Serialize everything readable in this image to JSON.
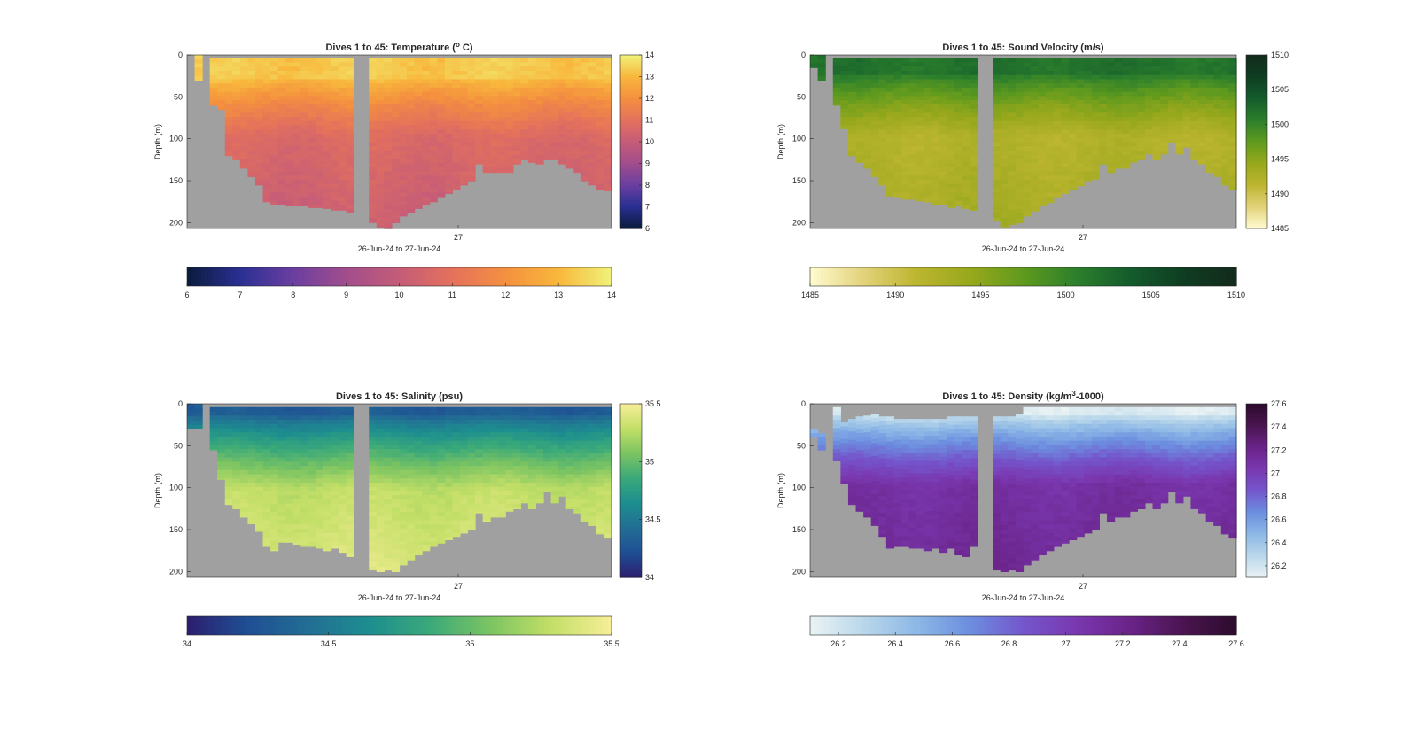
{
  "figure": {
    "colors": {
      "background": "#ffffff",
      "no_data": "#a0a0a0",
      "axis": "#262626"
    }
  },
  "chart_data": [
    {
      "id": "temperature",
      "type": "heatmap",
      "title_main": "Dives 1 to 45: Temperature (",
      "title_sup": "o",
      "title_tail": " C)",
      "xlabel": "26-Jun-24 to 27-Jun-24",
      "ylabel": "Depth (m)",
      "x_tick_labels": [
        "27"
      ],
      "y_ticks": [
        0,
        50,
        100,
        150,
        200
      ],
      "ylim": [
        0,
        207
      ],
      "clim": [
        6,
        14
      ],
      "colorbar_ticks": [
        "6",
        "7",
        "8",
        "9",
        "10",
        "11",
        "12",
        "13",
        "14"
      ],
      "horizontal_colorbar_ticks": [
        "6",
        "7",
        "8",
        "9",
        "10",
        "11",
        "12",
        "13",
        "14"
      ],
      "colormap": [
        "#0a1c3c",
        "#2a2f93",
        "#6a3fa0",
        "#a24d8c",
        "#c55c78",
        "#e4715c",
        "#f4903f",
        "#f8b73c",
        "#f0f27a"
      ],
      "profile_depth": [
        {
          "value": 0,
          "sort": "gap"
        },
        {
          "value": 30,
          "gap_start": 0
        },
        {
          "value": 0,
          "sort": "gap"
        },
        {
          "value": 60
        },
        {
          "value": 65
        },
        {
          "value": 120
        },
        {
          "value": 125
        },
        {
          "value": 135
        },
        {
          "value": 145
        },
        {
          "value": 155
        },
        {
          "value": 175
        },
        {
          "value": 178
        },
        {
          "value": 178
        },
        {
          "value": 180
        },
        {
          "value": 180
        },
        {
          "value": 180
        },
        {
          "value": 182
        },
        {
          "value": 182
        },
        {
          "value": 183
        },
        {
          "value": 185
        },
        {
          "value": 185
        },
        {
          "value": 188
        },
        {
          "value": 0,
          "sort": "gap"
        },
        {
          "value": 0,
          "sort": "gap"
        },
        {
          "value": 200
        },
        {
          "value": 205
        },
        {
          "value": 207
        },
        {
          "value": 200
        },
        {
          "value": 192
        },
        {
          "value": 188
        },
        {
          "value": 183
        },
        {
          "value": 178
        },
        {
          "value": 175
        },
        {
          "value": 170
        },
        {
          "value": 165
        },
        {
          "value": 160
        },
        {
          "value": 155
        },
        {
          "value": 150
        },
        {
          "value": 130
        },
        {
          "value": 140
        },
        {
          "value": 140
        },
        {
          "value": 140
        },
        {
          "value": 140
        },
        {
          "value": 130
        },
        {
          "value": 125
        },
        {
          "value": 128
        },
        {
          "value": 130
        },
        {
          "value": 125
        },
        {
          "value": 125
        },
        {
          "value": 130
        },
        {
          "value": 135
        },
        {
          "value": 140
        },
        {
          "value": 150
        },
        {
          "value": 155
        },
        {
          "value": 160
        },
        {
          "value": 162
        }
      ],
      "value_profile": {
        "surface": 13.3,
        "surface_depth": 20,
        "thermo_top": 25,
        "thermo_bottom": 95,
        "mid": 10.7,
        "bottom": 10.1
      }
    },
    {
      "id": "sound_velocity",
      "type": "heatmap",
      "title_main": "Dives 1 to 45: Sound Velocity (m/s)",
      "title_sup": "",
      "title_tail": "",
      "xlabel": "26-Jun-24 to 27-Jun-24",
      "ylabel": "Depth (m)",
      "x_tick_labels": [
        "27"
      ],
      "y_ticks": [
        0,
        50,
        100,
        150,
        200
      ],
      "ylim": [
        0,
        207
      ],
      "clim": [
        1485,
        1510
      ],
      "colorbar_ticks": [
        "1485",
        "1490",
        "1495",
        "1500",
        "1505",
        "1510"
      ],
      "horizontal_colorbar_ticks": [
        "1485",
        "1490",
        "1495",
        "1500",
        "1505",
        "1510"
      ],
      "colormap": [
        "#fffbd0",
        "#e3d27a",
        "#bcb530",
        "#98a81c",
        "#5f9a1e",
        "#2c7f2c",
        "#145c2c",
        "#0f3d22",
        "#132a1c"
      ],
      "profile_depth": [
        {
          "value": 15
        },
        {
          "value": 30
        },
        {
          "value": 0,
          "sort": "gap"
        },
        {
          "value": 60
        },
        {
          "value": 88
        },
        {
          "value": 120
        },
        {
          "value": 128
        },
        {
          "value": 135
        },
        {
          "value": 145
        },
        {
          "value": 155
        },
        {
          "value": 168
        },
        {
          "value": 170
        },
        {
          "value": 172
        },
        {
          "value": 172
        },
        {
          "value": 174
        },
        {
          "value": 175
        },
        {
          "value": 178
        },
        {
          "value": 178
        },
        {
          "value": 182
        },
        {
          "value": 180
        },
        {
          "value": 183
        },
        {
          "value": 185
        },
        {
          "value": 0,
          "sort": "gap"
        },
        {
          "value": 0,
          "sort": "gap"
        },
        {
          "value": 198
        },
        {
          "value": 205
        },
        {
          "value": 202
        },
        {
          "value": 200
        },
        {
          "value": 192
        },
        {
          "value": 186
        },
        {
          "value": 180
        },
        {
          "value": 176
        },
        {
          "value": 170
        },
        {
          "value": 165
        },
        {
          "value": 160
        },
        {
          "value": 156
        },
        {
          "value": 150
        },
        {
          "value": 148
        },
        {
          "value": 130
        },
        {
          "value": 140
        },
        {
          "value": 135
        },
        {
          "value": 135
        },
        {
          "value": 128
        },
        {
          "value": 125
        },
        {
          "value": 118
        },
        {
          "value": 125
        },
        {
          "value": 118
        },
        {
          "value": 105
        },
        {
          "value": 118
        },
        {
          "value": 110
        },
        {
          "value": 125
        },
        {
          "value": 130
        },
        {
          "value": 140
        },
        {
          "value": 145
        },
        {
          "value": 155
        },
        {
          "value": 160
        }
      ],
      "value_profile": {
        "surface": 1501.8,
        "surface_depth": 20,
        "thermo_top": 20,
        "thermo_bottom": 95,
        "mid": 1492.0,
        "bottom": 1493.2
      }
    },
    {
      "id": "salinity",
      "type": "heatmap",
      "title_main": "Dives 1 to 45: Salinity (psu)",
      "title_sup": "",
      "title_tail": "",
      "xlabel": "26-Jun-24 to 27-Jun-24",
      "ylabel": "Depth (m)",
      "x_tick_labels": [
        "27"
      ],
      "y_ticks": [
        0,
        50,
        100,
        150,
        200
      ],
      "ylim": [
        0,
        207
      ],
      "clim": [
        34,
        35.5
      ],
      "colorbar_ticks": [
        "34",
        "34.5",
        "35",
        "35.5"
      ],
      "horizontal_colorbar_ticks": [
        "34",
        "34.5",
        "35",
        "35.5"
      ],
      "colormap": [
        "#2c1e6e",
        "#1f4f94",
        "#226e94",
        "#1d8e8f",
        "#3aa97a",
        "#7cc462",
        "#c3df67",
        "#f7ee98"
      ],
      "profile_depth": [
        {
          "value": 30
        },
        {
          "value": 30
        },
        {
          "value": 0,
          "sort": "gap"
        },
        {
          "value": 55
        },
        {
          "value": 90
        },
        {
          "value": 120
        },
        {
          "value": 125
        },
        {
          "value": 135
        },
        {
          "value": 143
        },
        {
          "value": 152
        },
        {
          "value": 170
        },
        {
          "value": 175
        },
        {
          "value": 165
        },
        {
          "value": 165
        },
        {
          "value": 168
        },
        {
          "value": 170
        },
        {
          "value": 170
        },
        {
          "value": 172
        },
        {
          "value": 175
        },
        {
          "value": 172
        },
        {
          "value": 178
        },
        {
          "value": 182
        },
        {
          "value": 0,
          "sort": "gap"
        },
        {
          "value": 0,
          "sort": "gap"
        },
        {
          "value": 198
        },
        {
          "value": 200
        },
        {
          "value": 198
        },
        {
          "value": 200
        },
        {
          "value": 192
        },
        {
          "value": 186
        },
        {
          "value": 180
        },
        {
          "value": 175
        },
        {
          "value": 170
        },
        {
          "value": 166
        },
        {
          "value": 162
        },
        {
          "value": 158
        },
        {
          "value": 154
        },
        {
          "value": 150
        },
        {
          "value": 130
        },
        {
          "value": 140
        },
        {
          "value": 135
        },
        {
          "value": 135
        },
        {
          "value": 128
        },
        {
          "value": 125
        },
        {
          "value": 118
        },
        {
          "value": 125
        },
        {
          "value": 118
        },
        {
          "value": 105
        },
        {
          "value": 118
        },
        {
          "value": 110
        },
        {
          "value": 125
        },
        {
          "value": 130
        },
        {
          "value": 140
        },
        {
          "value": 145
        },
        {
          "value": 155
        },
        {
          "value": 160
        }
      ],
      "value_profile": {
        "surface": 34.3,
        "surface_depth": 10,
        "thermo_top": 10,
        "thermo_bottom": 100,
        "mid": 35.28,
        "bottom": 35.4
      }
    },
    {
      "id": "density",
      "type": "heatmap",
      "title_main": "Dives 1 to 45: Density (kg/m",
      "title_sup": "3",
      "title_tail": "-1000)",
      "xlabel": "26-Jun-24 to 27-Jun-24",
      "ylabel": "Depth (m)",
      "x_tick_labels": [
        "27"
      ],
      "y_ticks": [
        0,
        50,
        100,
        150,
        200
      ],
      "ylim": [
        0,
        207
      ],
      "clim": [
        26.1,
        27.6
      ],
      "colorbar_ticks": [
        "26.2",
        "26.4",
        "26.6",
        "26.8",
        "27",
        "27.2",
        "27.4",
        "27.6"
      ],
      "horizontal_colorbar_ticks": [
        "26.2",
        "26.4",
        "26.6",
        "26.8",
        "27",
        "27.2",
        "27.4",
        "27.6"
      ],
      "colormap": [
        "#eaf3f4",
        "#b9d7ea",
        "#8db8e6",
        "#6c8edf",
        "#7456cc",
        "#7a38b0",
        "#6a2388",
        "#4a1550",
        "#2c0b2c"
      ],
      "profile_depth": [
        {
          "value": 40,
          "start": 30
        },
        {
          "value": 55,
          "start": 35
        },
        {
          "value": 0,
          "sort": "gap"
        },
        {
          "value": 68
        },
        {
          "value": 95,
          "start": 22
        },
        {
          "value": 120,
          "start": 18
        },
        {
          "value": 128,
          "start": 15
        },
        {
          "value": 135,
          "start": 14
        },
        {
          "value": 145,
          "start": 12
        },
        {
          "value": 158,
          "start": 15
        },
        {
          "value": 172,
          "start": 15
        },
        {
          "value": 170,
          "start": 18
        },
        {
          "value": 170,
          "start": 18
        },
        {
          "value": 172,
          "start": 18
        },
        {
          "value": 172,
          "start": 18
        },
        {
          "value": 175,
          "start": 18
        },
        {
          "value": 172,
          "start": 18
        },
        {
          "value": 178,
          "start": 18
        },
        {
          "value": 172,
          "start": 15
        },
        {
          "value": 180,
          "start": 15
        },
        {
          "value": 182,
          "start": 15
        },
        {
          "value": 170,
          "start": 15
        },
        {
          "value": 0,
          "sort": "gap"
        },
        {
          "value": 0,
          "sort": "gap"
        },
        {
          "value": 198,
          "start": 15
        },
        {
          "value": 200,
          "start": 15
        },
        {
          "value": 198,
          "start": 15
        },
        {
          "value": 200,
          "start": 12
        },
        {
          "value": 192
        },
        {
          "value": 186
        },
        {
          "value": 180
        },
        {
          "value": 175
        },
        {
          "value": 170
        },
        {
          "value": 166
        },
        {
          "value": 162
        },
        {
          "value": 158
        },
        {
          "value": 154
        },
        {
          "value": 150
        },
        {
          "value": 130
        },
        {
          "value": 140
        },
        {
          "value": 135
        },
        {
          "value": 135
        },
        {
          "value": 128
        },
        {
          "value": 125
        },
        {
          "value": 118
        },
        {
          "value": 125
        },
        {
          "value": 118
        },
        {
          "value": 105
        },
        {
          "value": 118
        },
        {
          "value": 110
        },
        {
          "value": 125
        },
        {
          "value": 130
        },
        {
          "value": 140
        },
        {
          "value": 145
        },
        {
          "value": 155
        },
        {
          "value": 160
        }
      ],
      "value_profile": {
        "surface": 26.15,
        "surface_depth": 10,
        "thermo_top": 10,
        "thermo_bottom": 95,
        "mid": 27.1,
        "bottom": 27.18
      }
    }
  ]
}
